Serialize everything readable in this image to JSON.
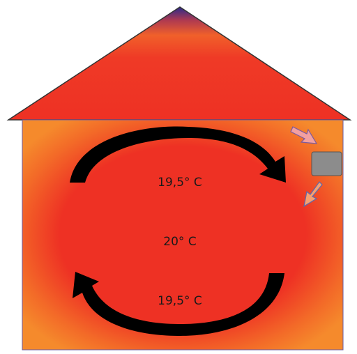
{
  "labels": [
    {
      "text": "19,5° C"
    },
    {
      "text": "20° C"
    },
    {
      "text": "19,5° C"
    }
  ]
}
